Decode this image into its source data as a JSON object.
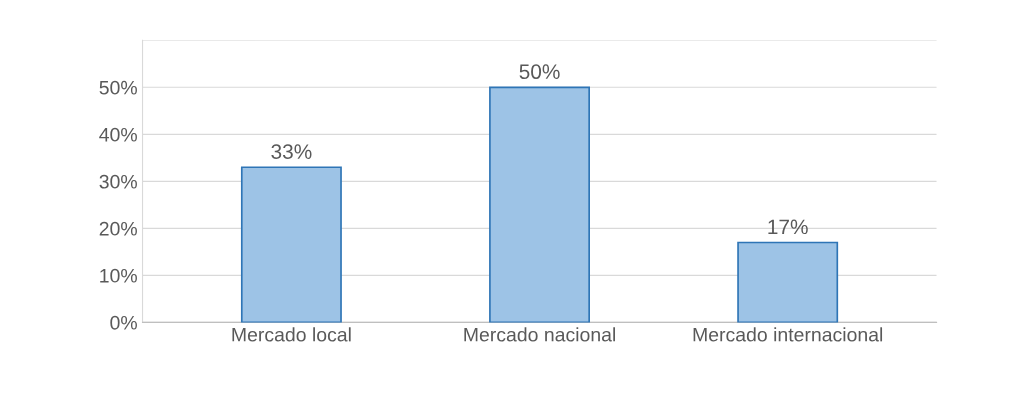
{
  "chart_data": {
    "type": "bar",
    "categories": [
      "Mercado local",
      "Mercado nacional",
      "Mercado internacional"
    ],
    "values": [
      33,
      50,
      17
    ],
    "value_labels": [
      "33%",
      "50%",
      "17%"
    ],
    "color": "#9dc3e6",
    "ylim": [
      0,
      60
    ],
    "yticks": [
      {
        "value": 0,
        "label": "0%"
      },
      {
        "value": 10,
        "label": "10%"
      },
      {
        "value": 20,
        "label": "20%"
      },
      {
        "value": 30,
        "label": "30%"
      },
      {
        "value": 40,
        "label": "40%"
      },
      {
        "value": 50,
        "label": "50%"
      },
      {
        "value": 60,
        "label": null
      }
    ],
    "grid": "y"
  }
}
